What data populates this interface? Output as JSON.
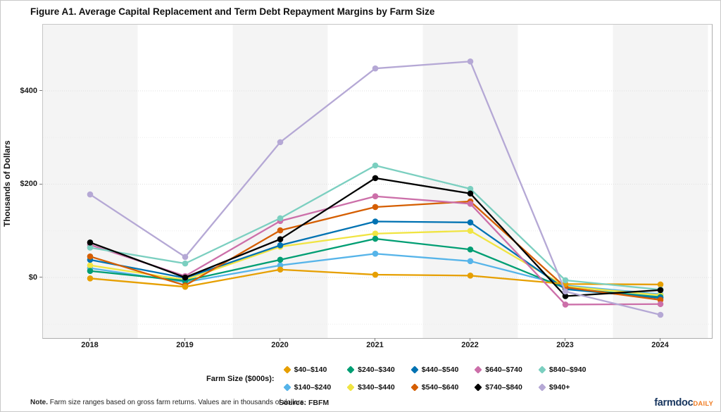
{
  "title": "Figure A1. Average Capital Replacement and Term Debt Repayment Margins by Farm Size",
  "chart_data": {
    "type": "line",
    "x": [
      2018,
      2019,
      2020,
      2021,
      2022,
      2023,
      2024
    ],
    "xlabel": "",
    "ylabel": "Thousands of Dollars",
    "ylim": [
      -130,
      540
    ],
    "yticks": [
      {
        "value": 0,
        "label": "$0"
      },
      {
        "value": 200,
        "label": "$200"
      },
      {
        "value": 400,
        "label": "$400"
      }
    ],
    "minor_gridlines": [
      -100,
      100,
      300
    ],
    "grid": "on",
    "legend_title": "Farm Size ($000s):",
    "legend_position": "bottom",
    "marker": "circle",
    "series": [
      {
        "name": "$40–$140",
        "color": "#E69F00",
        "values": [
          -2,
          -20,
          17,
          6,
          4,
          -14,
          -15
        ]
      },
      {
        "name": "$140–$240",
        "color": "#56B4E9",
        "values": [
          20,
          -10,
          26,
          51,
          35,
          -17,
          -36
        ]
      },
      {
        "name": "$240–$340",
        "color": "#009E73",
        "values": [
          14,
          -7,
          38,
          83,
          60,
          -23,
          -42
        ]
      },
      {
        "name": "$340–$440",
        "color": "#F0E442",
        "values": [
          26,
          -5,
          66,
          94,
          100,
          -19,
          -38
        ]
      },
      {
        "name": "$440–$540",
        "color": "#0072B2",
        "values": [
          38,
          -1,
          69,
          120,
          118,
          -25,
          -44
        ]
      },
      {
        "name": "$540–$640",
        "color": "#D55E00",
        "values": [
          45,
          -17,
          101,
          151,
          163,
          -21,
          -48
        ]
      },
      {
        "name": "$640–$740",
        "color": "#CC6FA9",
        "values": [
          70,
          3,
          121,
          174,
          158,
          -58,
          -57
        ]
      },
      {
        "name": "$740–$840",
        "color": "#000000",
        "values": [
          75,
          0,
          82,
          213,
          180,
          -40,
          -27
        ]
      },
      {
        "name": "$840–$940",
        "color": "#7BCFC0",
        "values": [
          64,
          30,
          127,
          240,
          190,
          -6,
          -26
        ]
      },
      {
        "name": "$940+",
        "color": "#B5A8D5",
        "values": [
          178,
          44,
          290,
          448,
          463,
          -30,
          -80
        ]
      }
    ]
  },
  "footer": {
    "note_bold": "Note.",
    "note_text": " Farm size ranges based on gross farm returns. Values are in thousands of dollars.",
    "source": "Source: FBFM",
    "logo_part1": "farmdoc",
    "logo_part2": "DAILY",
    "logo_color1": "#17355E",
    "logo_color2": "#F07E26"
  }
}
